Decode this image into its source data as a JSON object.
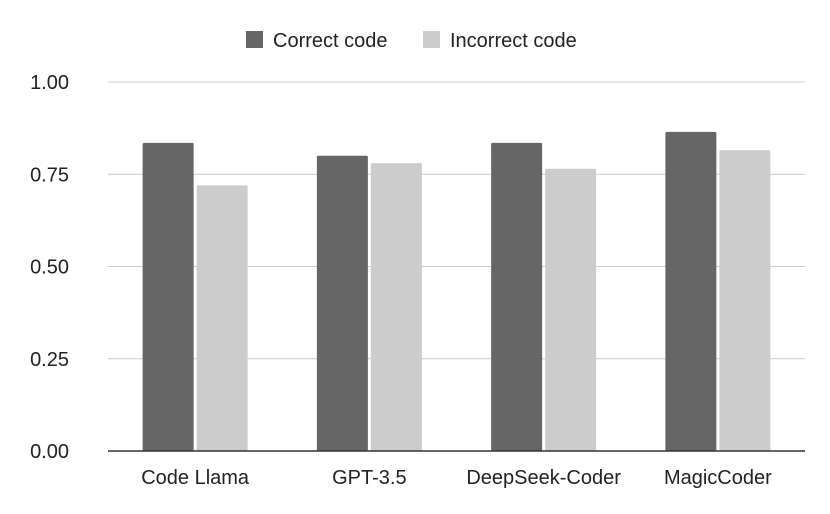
{
  "chart_data": {
    "type": "bar",
    "categories": [
      "Code Llama",
      "GPT-3.5",
      "DeepSeek-Coder",
      "MagicCoder"
    ],
    "series": [
      {
        "name": "Correct code",
        "values": [
          0.835,
          0.8,
          0.835,
          0.865
        ],
        "color": "#666666"
      },
      {
        "name": "Incorrect code",
        "values": [
          0.72,
          0.78,
          0.765,
          0.815
        ],
        "color": "#cccccc"
      }
    ],
    "ylim": [
      0,
      1
    ],
    "yticks": [
      0,
      0.25,
      0.5,
      0.75,
      1
    ],
    "ytick_labels": [
      "0.00",
      "0.25",
      "0.50",
      "0.75",
      "1.00"
    ],
    "grid": true,
    "legend_position": "top-center",
    "gridline_color": "#cccccc",
    "axis_color": "#333333"
  }
}
